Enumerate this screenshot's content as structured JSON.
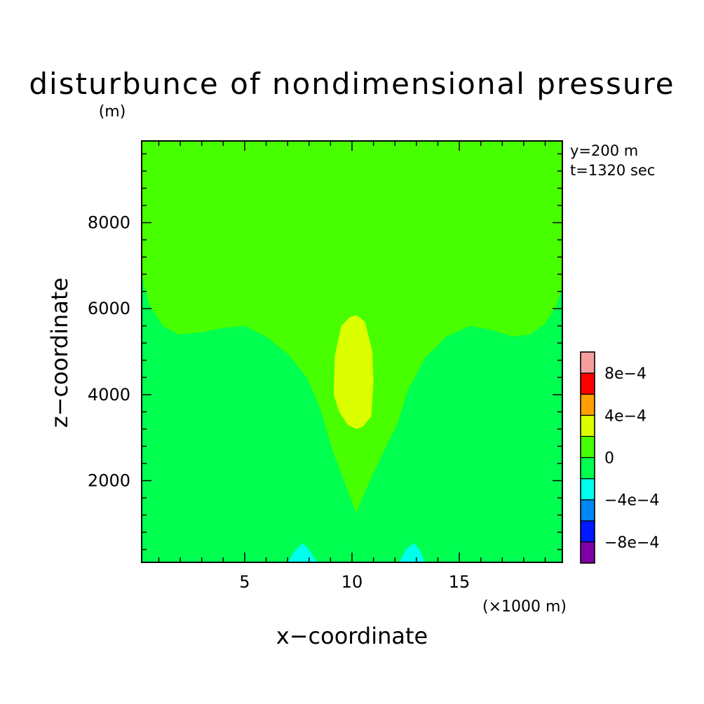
{
  "chart_data": {
    "type": "heatmap",
    "title": "disturbunce of nondimensional pressure",
    "units_label": "(m)",
    "xlabel": "x−coordinate",
    "ylabel": "z−coordinate",
    "x_scale_note": "(×1000 m)",
    "annotations": [
      "y=200 m",
      "t=1320 sec"
    ],
    "xlim": [
      0.2,
      19.8
    ],
    "ylim": [
      100,
      9900
    ],
    "x_ticks": [
      {
        "value": 5,
        "label": "5"
      },
      {
        "value": 10,
        "label": "10"
      },
      {
        "value": 15,
        "label": "15"
      }
    ],
    "y_ticks": [
      {
        "value": 2000,
        "label": "2000"
      },
      {
        "value": 4000,
        "label": "4000"
      },
      {
        "value": 6000,
        "label": "6000"
      },
      {
        "value": 8000,
        "label": "8000"
      }
    ],
    "x_minor_step": 1,
    "y_minor_step": 400,
    "background_level": "0 to -2e-4",
    "colorbar": {
      "levels": [
        {
          "range": [
            -0.001,
            -0.0008
          ],
          "color": "#7f00a6"
        },
        {
          "range": [
            -0.0008,
            -0.0006
          ],
          "color": "#0018ff"
        },
        {
          "range": [
            -0.0006,
            -0.0004
          ],
          "color": "#0087f5"
        },
        {
          "range": [
            -0.0004,
            -0.0002
          ],
          "color": "#00ffec"
        },
        {
          "range": [
            -0.0002,
            0
          ],
          "color": "#00ff4e"
        },
        {
          "range": [
            0,
            0.0002
          ],
          "color": "#47ff00"
        },
        {
          "range": [
            0.0002,
            0.0004
          ],
          "color": "#dcff00"
        },
        {
          "range": [
            0.0004,
            0.0006
          ],
          "color": "#ff9f00"
        },
        {
          "range": [
            0.0006,
            0.0008
          ],
          "color": "#ff0000"
        },
        {
          "range": [
            0.0008,
            0.001
          ],
          "color": "#f69e9e"
        }
      ],
      "tick_labels": [
        "−8e−4",
        "−4e−4",
        "0",
        "4e−4",
        "8e−4"
      ]
    },
    "regions": [
      {
        "level": "0 to 2e-4",
        "color": "#47ff00",
        "shape": "upper layer above ~5400 m, dipping to a V apex near x=10.2, z=1250",
        "x": [
          0.2,
          0.3,
          0.6,
          1.2,
          1.9,
          3,
          4,
          5,
          6,
          7,
          7.9,
          8.5,
          9.1,
          9.7,
          10.2,
          10.7,
          11.4,
          12.1,
          12.6,
          13.4,
          14.4,
          15.5,
          16.5,
          17.5,
          18.3,
          19,
          19.5,
          19.8,
          19.8,
          0.2
        ],
        "z": [
          6850,
          6550,
          6050,
          5600,
          5400,
          5450,
          5550,
          5600,
          5350,
          4950,
          4400,
          3700,
          2700,
          1900,
          1250,
          1850,
          2600,
          3300,
          4100,
          4850,
          5350,
          5600,
          5500,
          5350,
          5400,
          5650,
          6050,
          6500,
          9900,
          9900
        ]
      },
      {
        "level": "2e-4 to 4e-4",
        "color": "#dcff00",
        "shape": "elongated cell centred near x=10.2, z=4500",
        "x": [
          10.2,
          10.6,
          10.95,
          11.0,
          10.9,
          10.5,
          10.2,
          9.8,
          9.4,
          9.15,
          9.2,
          9.5,
          9.9,
          10.2
        ],
        "z": [
          5850,
          5700,
          5000,
          4300,
          3500,
          3250,
          3200,
          3300,
          3600,
          4000,
          4900,
          5600,
          5800,
          5850
        ]
      },
      {
        "level": "-4e-4 to -2e-4",
        "color": "#00ffec",
        "shape": "small surface bump near x=7.7",
        "x": [
          7.0,
          7.3,
          7.7,
          8.0,
          8.4,
          7.0
        ],
        "z": [
          100,
          350,
          550,
          400,
          100,
          100
        ]
      },
      {
        "level": "-4e-4 to -2e-4",
        "color": "#00ffec",
        "shape": "small surface bump near x=12.7",
        "x": [
          12.2,
          12.5,
          12.9,
          13.2,
          13.4,
          12.2
        ],
        "z": [
          100,
          400,
          550,
          350,
          100,
          100
        ]
      }
    ]
  }
}
